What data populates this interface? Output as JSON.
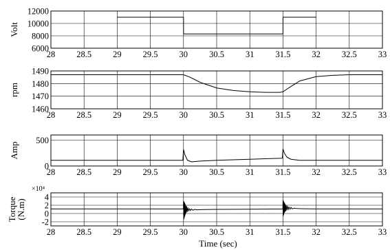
{
  "chart_data": [
    {
      "type": "line",
      "ylabel": "Volt",
      "xlim": [
        28,
        33
      ],
      "ylim": [
        6000,
        12000
      ],
      "yticks": [
        "6000",
        "8000",
        "10000",
        "12000"
      ],
      "xticks": [
        "28",
        "28.5",
        "29",
        "29.5",
        "30",
        "30.5",
        "31",
        "31.5",
        "32",
        "32.5",
        "33"
      ],
      "grid": true,
      "series": [
        {
          "line_color": "#1a3a4a",
          "x": [
            29,
            30,
            30,
            31.5,
            31.5,
            32
          ],
          "y": [
            11000,
            11000,
            8300,
            8300,
            11000,
            11000
          ]
        }
      ]
    },
    {
      "type": "line",
      "ylabel": "rpm",
      "xlim": [
        28,
        33
      ],
      "ylim": [
        1460,
        1490
      ],
      "yticks": [
        "1460",
        "1470",
        "1480",
        "1490"
      ],
      "xticks": [
        "28",
        "28.5",
        "29",
        "29.5",
        "30",
        "30.5",
        "31",
        "31.5",
        "32",
        "32.5",
        "33"
      ],
      "grid": true,
      "series": [
        {
          "x": [
            28,
            30,
            30.1,
            30.25,
            30.5,
            30.75,
            31,
            31.25,
            31.45,
            31.5,
            31.6,
            31.75,
            32,
            32.25,
            32.5,
            33
          ],
          "y": [
            1487,
            1487,
            1485,
            1481,
            1476.5,
            1474.5,
            1473.5,
            1473,
            1473,
            1473.5,
            1477,
            1482,
            1485.5,
            1486.5,
            1487,
            1487
          ]
        }
      ]
    },
    {
      "type": "line",
      "ylabel": "Amp",
      "xlim": [
        28,
        33
      ],
      "ylim": [
        0,
        600
      ],
      "yticks": [
        "0",
        "500"
      ],
      "xticks": [
        "28",
        "28.5",
        "29",
        "29.5",
        "30",
        "30.5",
        "31",
        "31.5",
        "32",
        "32.5",
        "33"
      ],
      "grid": true,
      "series": [
        {
          "x": [
            28,
            29.99,
            30,
            30.02,
            30.06,
            30.12,
            30.25,
            30.5,
            31,
            31.49,
            31.5,
            31.52,
            31.56,
            31.62,
            31.75,
            32,
            33
          ],
          "y": [
            110,
            110,
            320,
            220,
            110,
            80,
            95,
            110,
            130,
            150,
            330,
            250,
            170,
            130,
            110,
            110,
            110
          ]
        }
      ]
    },
    {
      "type": "line",
      "ylabel": "Torque\n(N.m)",
      "exponent_label": "×10⁴",
      "xlabel": "Time (sec)",
      "xlim": [
        28,
        33
      ],
      "ylim": [
        -3,
        5
      ],
      "yticks": [
        "-2",
        "0",
        "2",
        "4"
      ],
      "xticks": [
        "28",
        "28.5",
        "29",
        "29.5",
        "30",
        "30.5",
        "31",
        "31.5",
        "32",
        "32.5",
        "33"
      ],
      "grid": true,
      "series": [
        {
          "x": [
            28,
            29.998,
            30,
            30.004,
            30.008,
            30.012,
            30.016,
            30.02,
            30.024,
            30.028,
            30.034,
            30.04,
            30.048,
            30.056,
            30.066,
            30.078,
            30.09,
            30.105,
            30.12,
            30.14,
            30.17,
            30.2,
            30.3,
            30.5,
            31,
            31.498,
            31.5,
            31.504,
            31.508,
            31.512,
            31.516,
            31.52,
            31.524,
            31.528,
            31.534,
            31.54,
            31.548,
            31.556,
            31.566,
            31.578,
            31.59,
            31.605,
            31.62,
            31.64,
            31.67,
            31.7,
            31.8,
            32,
            33
          ],
          "y": [
            1.1,
            1.1,
            3.0,
            -1.4,
            2.8,
            -1.0,
            2.6,
            -0.6,
            2.3,
            -0.2,
            1.9,
            0.2,
            1.7,
            0.4,
            1.4,
            0.6,
            1.2,
            0.7,
            1.1,
            0.8,
            1.0,
            0.9,
            0.95,
            1.0,
            1.05,
            1.1,
            3.2,
            -0.6,
            3.0,
            -0.2,
            2.7,
            0.2,
            2.5,
            0.4,
            2.2,
            0.6,
            2.0,
            0.8,
            1.8,
            0.9,
            1.6,
            1.0,
            1.5,
            1.1,
            1.3,
            1.2,
            1.15,
            1.1,
            1.1
          ]
        }
      ]
    }
  ]
}
